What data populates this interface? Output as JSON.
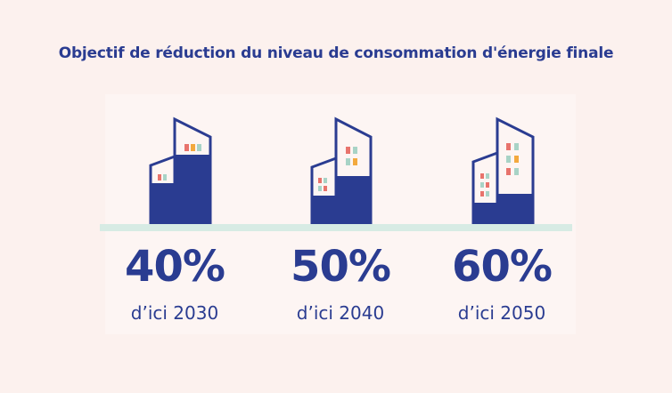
{
  "title": "Objectif de réduction du niveau de consommation d'énergie finale",
  "colors": {
    "navy": "#2a3c91",
    "window_red": "#e8736c",
    "window_orange": "#f3a93e",
    "window_teal": "#a8d3c6",
    "ground": "#d7ebe4",
    "background": "#fcf1ee"
  },
  "goals": [
    {
      "percent": "40%",
      "label": "d’ici 2030",
      "fill_fraction": 0.4
    },
    {
      "percent": "50%",
      "label": "d’ici 2040",
      "fill_fraction": 0.5
    },
    {
      "percent": "60%",
      "label": "d’ici 2050",
      "fill_fraction": 0.6
    }
  ]
}
